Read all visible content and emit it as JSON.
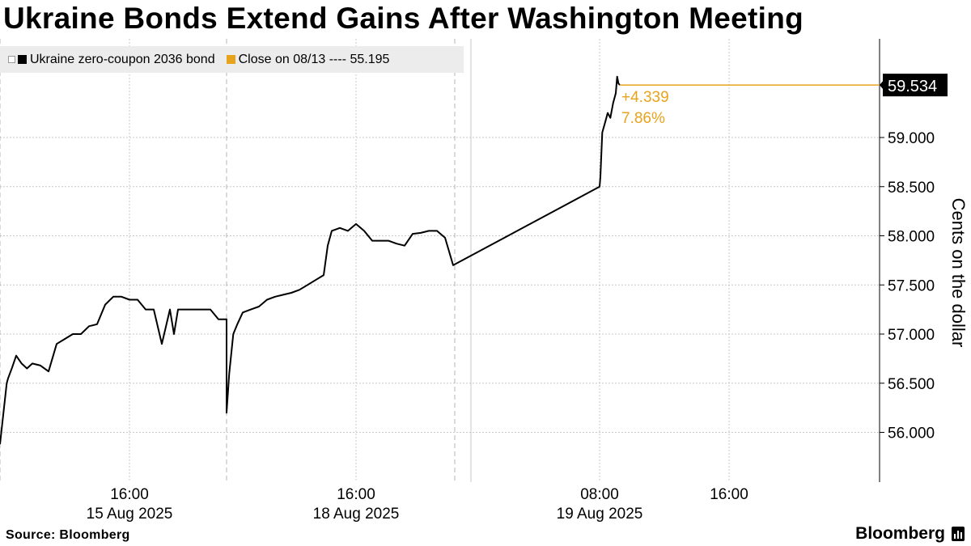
{
  "title": "Ukraine Bonds Extend Gains After Washington Meeting",
  "legend": {
    "series_label": "Ukraine zero-coupon 2036 bond",
    "close_label": "Close on 08/13 ---- 55.195"
  },
  "annotations": {
    "last_value": "59.534",
    "change_abs": "+4.339",
    "change_pct": "7.86%"
  },
  "footer": {
    "source": "Source: Bloomberg",
    "brand": "Bloomberg"
  },
  "colors": {
    "line": "#000000",
    "accent": "#e8a31d",
    "legend_bg": "#ececec",
    "grid": "#c8c8c8"
  },
  "chart_data": {
    "type": "line",
    "ylabel": "Cents on the dollar",
    "ylim": [
      55.5,
      60.4
    ],
    "y_ticks": [
      "59.000",
      "58.500",
      "58.000",
      "57.500",
      "57.000",
      "56.500",
      "56.000"
    ],
    "x_ticks": [
      {
        "time": "16:00",
        "date": "15 Aug 2025",
        "at": "2025-08-15T16:00"
      },
      {
        "time": "16:00",
        "date": "18 Aug 2025",
        "at": "2025-08-18T16:00"
      },
      {
        "time": "08:00",
        "date": "19 Aug 2025",
        "at": "2025-08-19T08:00"
      },
      {
        "time": "16:00",
        "date": "",
        "at": "2025-08-19T16:00"
      }
    ],
    "reference_line": {
      "label": "Close on 08/13",
      "value": 55.195
    },
    "last": {
      "value": 59.534,
      "change": 4.339,
      "change_pct": 7.86
    },
    "grid": true,
    "series": [
      {
        "name": "Ukraine zero-coupon 2036 bond",
        "x": [
          "2025-08-15T08:00",
          "2025-08-15T08:25",
          "2025-08-15T08:30",
          "2025-08-15T08:45",
          "2025-08-15T09:00",
          "2025-08-15T09:20",
          "2025-08-15T09:40",
          "2025-08-15T10:00",
          "2025-08-15T10:30",
          "2025-08-15T11:00",
          "2025-08-15T11:30",
          "2025-08-15T12:00",
          "2025-08-15T12:30",
          "2025-08-15T13:00",
          "2025-08-15T13:30",
          "2025-08-15T14:00",
          "2025-08-15T14:30",
          "2025-08-15T15:00",
          "2025-08-15T15:30",
          "2025-08-15T16:00",
          "2025-08-15T16:30",
          "2025-08-15T17:00",
          "2025-08-15T17:30",
          "2025-08-15T18:00",
          "2025-08-15T18:30",
          "2025-08-15T18:45",
          "2025-08-15T19:00",
          "2025-08-15T19:15",
          "2025-08-15T19:30",
          "2025-08-15T20:00",
          "2025-08-15T21:00",
          "2025-08-15T21:30",
          "2025-08-15T22:00",
          "2025-08-18T08:00",
          "2025-08-18T08:10",
          "2025-08-18T08:25",
          "2025-08-18T08:40",
          "2025-08-18T09:00",
          "2025-08-18T09:30",
          "2025-08-18T10:00",
          "2025-08-18T10:30",
          "2025-08-18T11:00",
          "2025-08-18T11:30",
          "2025-08-18T12:00",
          "2025-08-18T12:30",
          "2025-08-18T13:00",
          "2025-08-18T13:30",
          "2025-08-18T14:00",
          "2025-08-18T14:15",
          "2025-08-18T14:30",
          "2025-08-18T15:00",
          "2025-08-18T15:30",
          "2025-08-18T16:00",
          "2025-08-18T16:30",
          "2025-08-18T17:00",
          "2025-08-18T17:30",
          "2025-08-18T18:00",
          "2025-08-18T18:30",
          "2025-08-18T19:00",
          "2025-08-18T19:30",
          "2025-08-18T20:00",
          "2025-08-18T20:30",
          "2025-08-18T21:00",
          "2025-08-18T21:30",
          "2025-08-18T22:00",
          "2025-08-19T08:00",
          "2025-08-19T08:03",
          "2025-08-19T08:10",
          "2025-08-19T08:20",
          "2025-08-19T08:30",
          "2025-08-19T08:40",
          "2025-08-19T08:50",
          "2025-08-19T09:00",
          "2025-08-19T09:05",
          "2025-08-19T09:10",
          "2025-08-19T09:15"
        ],
        "y": [
          55.88,
          56.5,
          56.55,
          56.66,
          56.78,
          56.7,
          56.65,
          56.7,
          56.68,
          56.62,
          56.9,
          56.95,
          57.0,
          57.0,
          57.08,
          57.1,
          57.3,
          57.38,
          57.38,
          57.35,
          57.35,
          57.25,
          57.25,
          56.9,
          57.25,
          57.0,
          57.25,
          57.25,
          57.25,
          57.25,
          57.25,
          57.15,
          57.15,
          56.2,
          56.6,
          57.0,
          57.1,
          57.22,
          57.25,
          57.28,
          57.35,
          57.38,
          57.4,
          57.42,
          57.45,
          57.5,
          57.55,
          57.6,
          57.9,
          58.05,
          58.08,
          58.05,
          58.12,
          58.05,
          57.95,
          57.95,
          57.95,
          57.92,
          57.9,
          58.02,
          58.03,
          58.05,
          58.05,
          57.98,
          57.7,
          58.5,
          58.6,
          59.05,
          59.15,
          59.25,
          59.2,
          59.35,
          59.45,
          59.62,
          59.55,
          59.534
        ]
      }
    ]
  }
}
